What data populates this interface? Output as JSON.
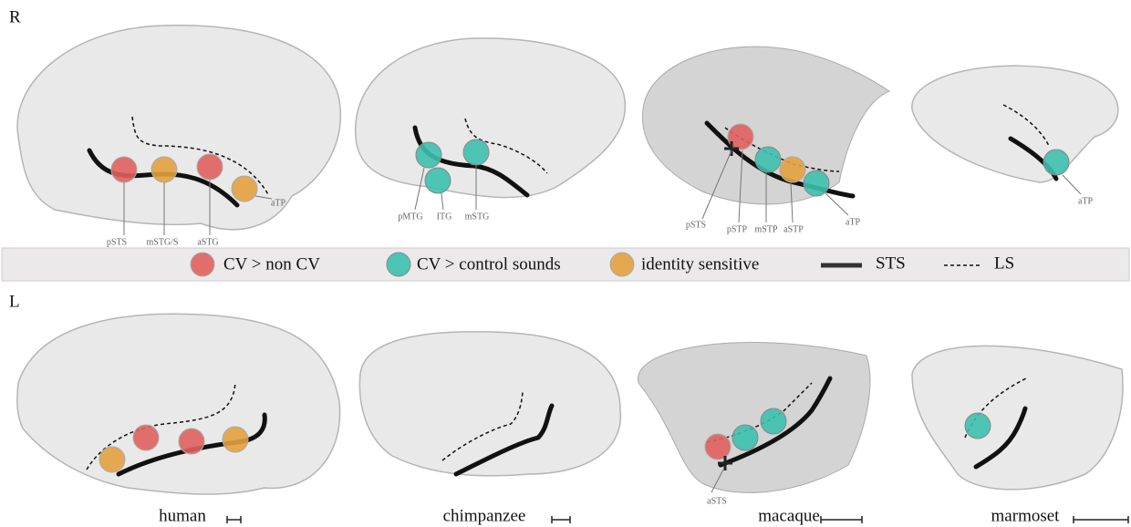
{
  "hemispheres": [
    {
      "label": "R",
      "regions": [
        "pSTS",
        "mSTG/S",
        "aSTG",
        "aTP",
        "pMTG",
        "ITG",
        "mSTG",
        "pSTS",
        "pSTP",
        "mSTP",
        "aSTP",
        "aTP",
        "aTP"
      ]
    },
    {
      "label": "L",
      "regions": [
        "aSTS"
      ]
    }
  ],
  "legend": [
    "CV > non CV",
    "CV > control sounds",
    "identity sensitive",
    "STS",
    "LS"
  ],
  "species": [
    "human",
    "chimpanzee",
    "macaque",
    "marmoset"
  ]
}
